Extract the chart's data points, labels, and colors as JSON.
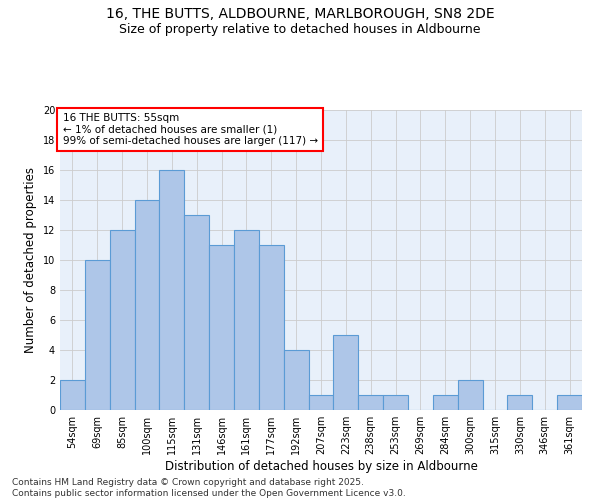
{
  "title": "16, THE BUTTS, ALDBOURNE, MARLBOROUGH, SN8 2DE",
  "subtitle": "Size of property relative to detached houses in Aldbourne",
  "xlabel": "Distribution of detached houses by size in Aldbourne",
  "ylabel": "Number of detached properties",
  "bin_labels": [
    "54sqm",
    "69sqm",
    "85sqm",
    "100sqm",
    "115sqm",
    "131sqm",
    "146sqm",
    "161sqm",
    "177sqm",
    "192sqm",
    "207sqm",
    "223sqm",
    "238sqm",
    "253sqm",
    "269sqm",
    "284sqm",
    "300sqm",
    "315sqm",
    "330sqm",
    "346sqm",
    "361sqm"
  ],
  "values": [
    2,
    10,
    12,
    14,
    16,
    13,
    11,
    12,
    11,
    4,
    1,
    5,
    1,
    1,
    0,
    1,
    2,
    0,
    1,
    0,
    1
  ],
  "bar_color": "#aec6e8",
  "bar_edge_color": "#5b9bd5",
  "annotation_box_text": "16 THE BUTTS: 55sqm\n← 1% of detached houses are smaller (1)\n99% of semi-detached houses are larger (117) →",
  "annotation_box_color": "white",
  "annotation_box_edge_color": "red",
  "ylim": [
    0,
    20
  ],
  "yticks": [
    0,
    2,
    4,
    6,
    8,
    10,
    12,
    14,
    16,
    18,
    20
  ],
  "grid_color": "#cccccc",
  "bg_color": "#e8f0fa",
  "footer_line1": "Contains HM Land Registry data © Crown copyright and database right 2025.",
  "footer_line2": "Contains public sector information licensed under the Open Government Licence v3.0.",
  "title_fontsize": 10,
  "subtitle_fontsize": 9,
  "axis_label_fontsize": 8.5,
  "tick_fontsize": 7,
  "annotation_fontsize": 7.5,
  "footer_fontsize": 6.5
}
